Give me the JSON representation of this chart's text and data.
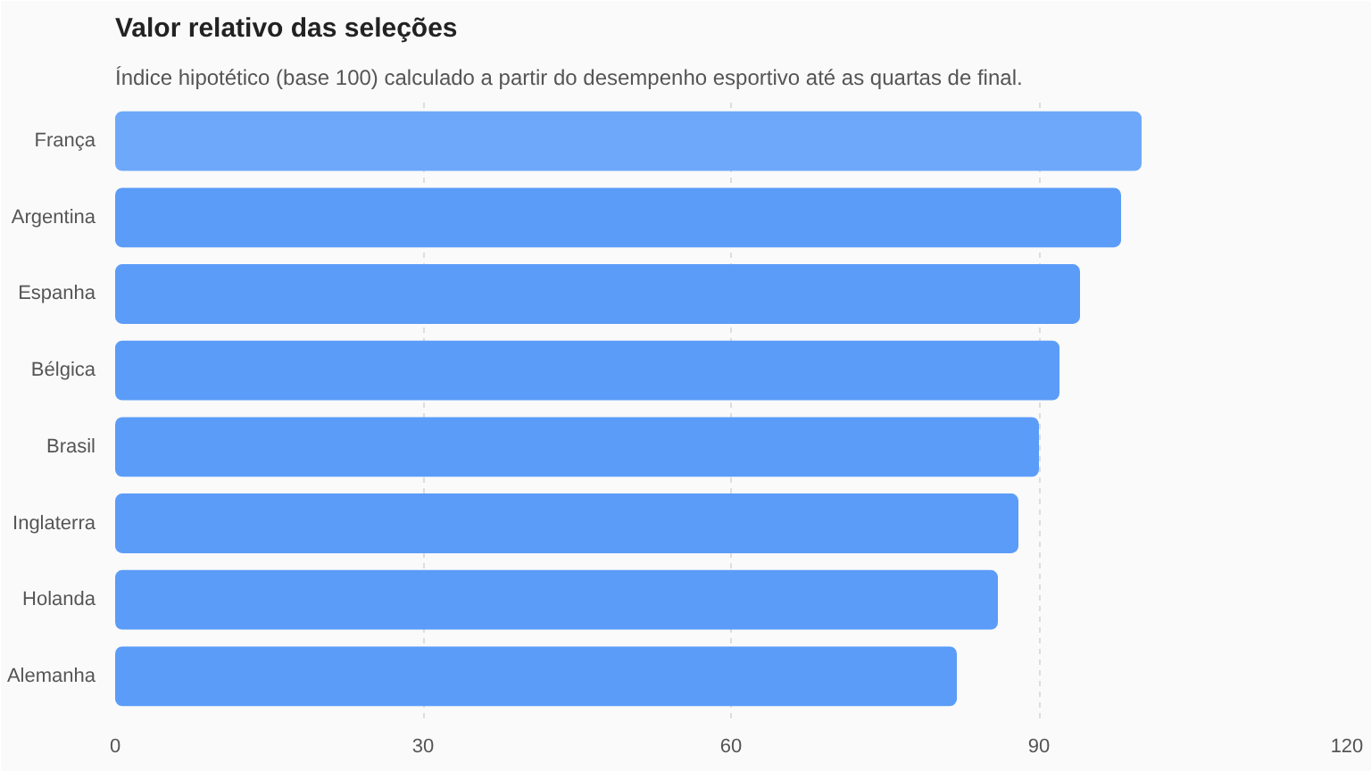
{
  "chart_data": {
    "type": "bar",
    "orientation": "horizontal",
    "title": "Valor relativo das seleções",
    "subtitle": "Índice hipotético (base 100) calculado a partir do desempenho esportivo até as quartas de final.",
    "categories": [
      "França",
      "Argentina",
      "Espanha",
      "Bélgica",
      "Brasil",
      "Inglaterra",
      "Holanda",
      "Alemanha"
    ],
    "values": [
      100,
      98,
      94,
      92,
      90,
      88,
      86,
      82
    ],
    "colors": [
      "#6ea8fa",
      "#5b9cf8",
      "#5b9cf8",
      "#5b9cf8",
      "#5b9cf8",
      "#5b9cf8",
      "#5b9cf8",
      "#5b9cf8"
    ],
    "xlim": [
      0,
      120
    ],
    "xticks": [
      0,
      30,
      60,
      90,
      120
    ],
    "grid": "x"
  }
}
